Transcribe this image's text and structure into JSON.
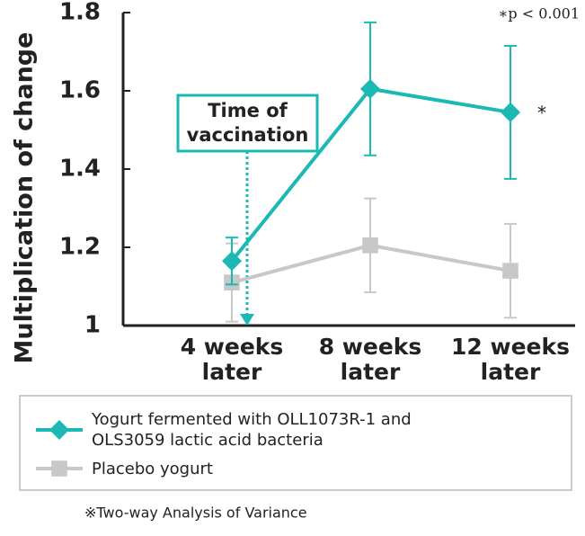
{
  "chart_data": {
    "type": "line",
    "y_label": "Multiplication of change",
    "categories": [
      "4 weeks later",
      "8 weeks later",
      "12 weeks later"
    ],
    "series": [
      {
        "name": "Yogurt fermented with OLL1073R-1 and OLS3059 lactic acid bacteria",
        "color": "#1bb8b4",
        "marker": "diamond",
        "values": [
          1.165,
          1.605,
          1.545
        ],
        "errors": [
          0.06,
          0.17,
          0.17
        ]
      },
      {
        "name": "Placebo yogurt",
        "color": "#c8c8c8",
        "marker": "square",
        "values": [
          1.11,
          1.205,
          1.14
        ],
        "errors": [
          0.1,
          0.12,
          0.12
        ]
      }
    ],
    "ylim": [
      1,
      1.8
    ],
    "yticks": [
      1,
      1.2,
      1.4,
      1.6,
      1.8
    ],
    "grid": false,
    "annotations": {
      "vaccination": "Time of vaccination",
      "significance": "∗p < 0.001",
      "marker": "*",
      "footnote": "※Two-way Analysis of Variance"
    }
  }
}
